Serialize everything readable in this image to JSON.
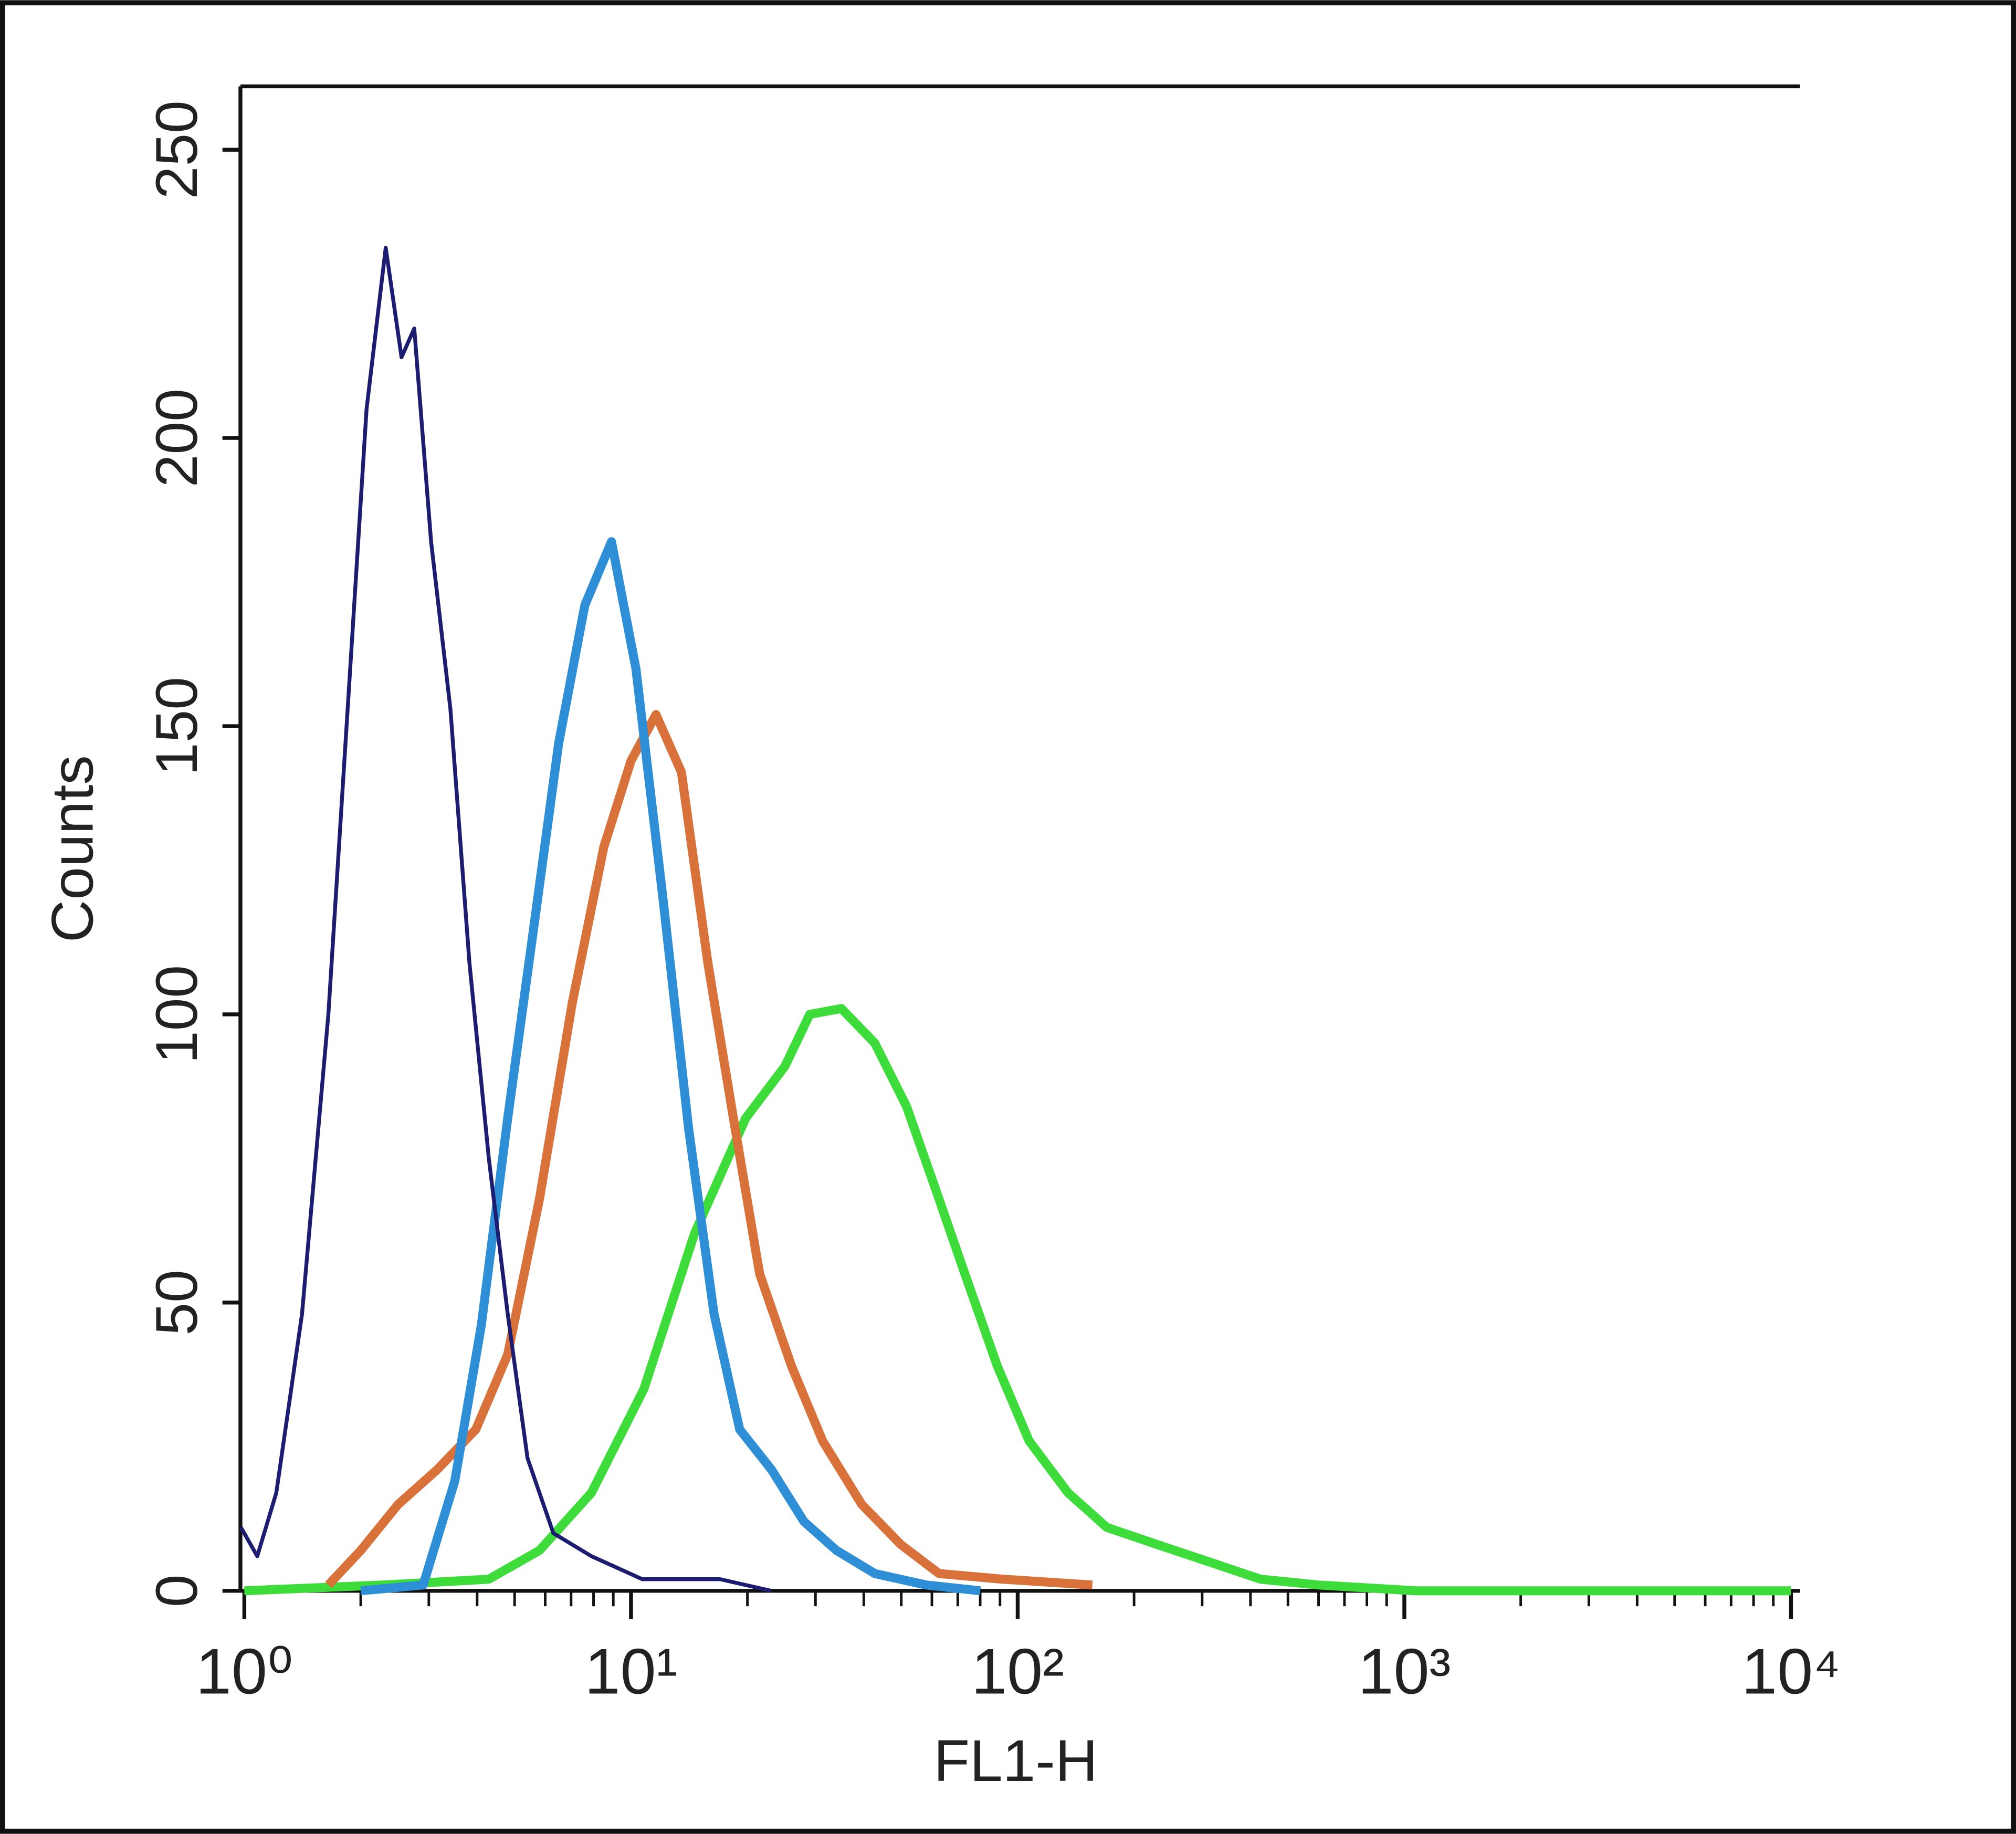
{
  "chart_data": {
    "type": "line",
    "x_label": "FL1-H",
    "y_label": "Counts",
    "x_log": true,
    "xlim": [
      0.977,
      10550
    ],
    "ylim": [
      0,
      261
    ],
    "xticks": [
      {
        "value": 1,
        "label": "10⁰"
      },
      {
        "value": 10,
        "label": "10¹"
      },
      {
        "value": 100,
        "label": "10²"
      },
      {
        "value": 1000,
        "label": "10³"
      },
      {
        "value": 10000,
        "label": "10⁴"
      }
    ],
    "xticks_minor": [
      2,
      3,
      4,
      5,
      6,
      7,
      8,
      9,
      20,
      30,
      40,
      50,
      60,
      70,
      80,
      90,
      200,
      300,
      400,
      500,
      600,
      700,
      800,
      900,
      2000,
      3000,
      4000,
      5000,
      6000,
      7000,
      8000,
      9000
    ],
    "yticks": [
      0,
      50,
      100,
      150,
      200,
      250
    ],
    "series": [
      {
        "color": "#1c1c70",
        "width": 3,
        "x": [
          0.98,
          1.08,
          1.21,
          1.41,
          1.65,
          1.85,
          2.07,
          2.32,
          2.55,
          2.75,
          3.04,
          3.41,
          3.82,
          4.29,
          4.8,
          5.4,
          6.3,
          7.9,
          10.7,
          17,
          23
        ],
        "values": [
          11,
          6,
          17,
          48,
          100,
          153,
          205,
          233,
          214,
          219,
          182,
          153,
          109,
          75,
          48,
          23,
          10,
          6,
          2,
          2,
          0
        ]
      },
      {
        "color": "#2f8fd6",
        "width": 7,
        "x": [
          2.0,
          2.9,
          3.5,
          4.1,
          4.8,
          5.6,
          6.5,
          7.6,
          8.9,
          10.3,
          12.1,
          14.1,
          16.4,
          19.1,
          23.1,
          28,
          34,
          42.7,
          58,
          80
        ],
        "values": [
          0,
          1,
          19,
          46,
          82,
          115,
          147,
          171,
          182,
          160,
          120,
          80,
          48,
          28,
          21,
          12,
          7,
          3,
          1,
          0
        ]
      },
      {
        "color": "#d8713a",
        "width": 7,
        "x": [
          1.65,
          2.0,
          2.5,
          3.15,
          3.97,
          4.8,
          5.8,
          7.05,
          8.5,
          10,
          11.6,
          13.5,
          15.8,
          18.4,
          21.5,
          26,
          31.3,
          39.5,
          49.9,
          62.6,
          91.5,
          156
        ],
        "values": [
          1,
          7,
          15,
          21,
          28,
          41,
          68,
          102,
          129,
          144,
          152,
          142,
          109,
          82,
          55,
          39,
          26,
          15,
          8,
          3,
          2,
          1
        ]
      },
      {
        "color": "#3ddc3a",
        "width": 7,
        "x": [
          1,
          2.3,
          4.29,
          5.8,
          7.9,
          10.8,
          14.6,
          19.8,
          25,
          29,
          35,
          42.7,
          51.6,
          62.6,
          73,
          88.6,
          107,
          135,
          170,
          230,
          313,
          425,
          600,
          1070,
          10000
        ],
        "values": [
          0,
          1,
          2,
          7,
          17,
          35,
          62,
          82,
          91,
          100,
          101,
          95,
          84,
          68,
          55,
          39,
          26,
          17,
          11,
          8,
          5,
          2,
          1,
          0,
          0
        ]
      }
    ]
  }
}
